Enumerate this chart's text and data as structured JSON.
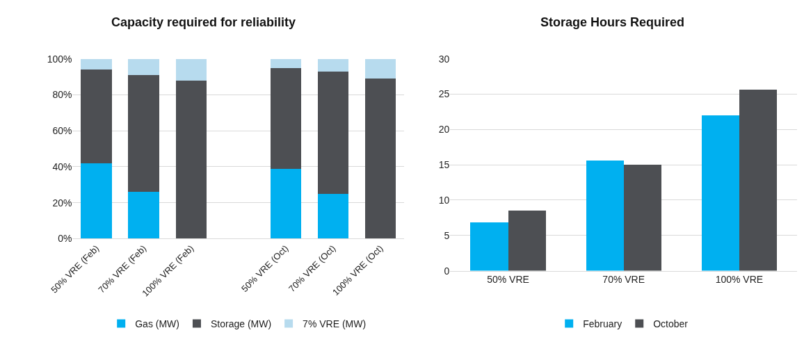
{
  "chart_data": [
    {
      "type": "bar",
      "title": "Capacity required for reliability",
      "stacked": true,
      "categories": [
        "50% VRE (Feb)",
        "70% VRE (Feb)",
        "100% VRE (Feb)",
        null,
        "50% VRE (Oct)",
        "70% VRE (Oct)",
        "100% VRE (Oct)"
      ],
      "series": [
        {
          "name": "Gas (MW)",
          "color": "#00b0f0",
          "values": [
            42,
            26,
            0,
            null,
            39,
            25,
            0
          ]
        },
        {
          "name": "Storage (MW)",
          "color": "#4d4f53",
          "values": [
            52,
            65,
            88,
            null,
            56,
            68,
            89
          ]
        },
        {
          "name": "7% VRE (MW)",
          "color": "#b7dbee",
          "values": [
            6,
            9,
            12,
            null,
            5,
            7,
            11
          ]
        }
      ],
      "ylim": [
        0,
        100
      ],
      "yticks": [
        {
          "value": 0,
          "label": "0%"
        },
        {
          "value": 20,
          "label": "20%"
        },
        {
          "value": 40,
          "label": "40%"
        },
        {
          "value": 60,
          "label": "60%"
        },
        {
          "value": 80,
          "label": "80%"
        },
        {
          "value": 100,
          "label": "100%"
        }
      ],
      "grid": "y",
      "legend": "bottom"
    },
    {
      "type": "bar",
      "title": "Storage Hours Required",
      "categories": [
        "50% VRE",
        "70% VRE",
        "100% VRE"
      ],
      "series": [
        {
          "name": "February",
          "color": "#00b0f0",
          "values": [
            6.8,
            15.6,
            22
          ]
        },
        {
          "name": "October",
          "color": "#4d4f53",
          "values": [
            8.5,
            15,
            25.6
          ]
        }
      ],
      "ylim": [
        0,
        30
      ],
      "yticks": [
        0,
        5,
        10,
        15,
        20,
        25,
        30
      ],
      "grid": "y",
      "legend": "bottom"
    }
  ]
}
